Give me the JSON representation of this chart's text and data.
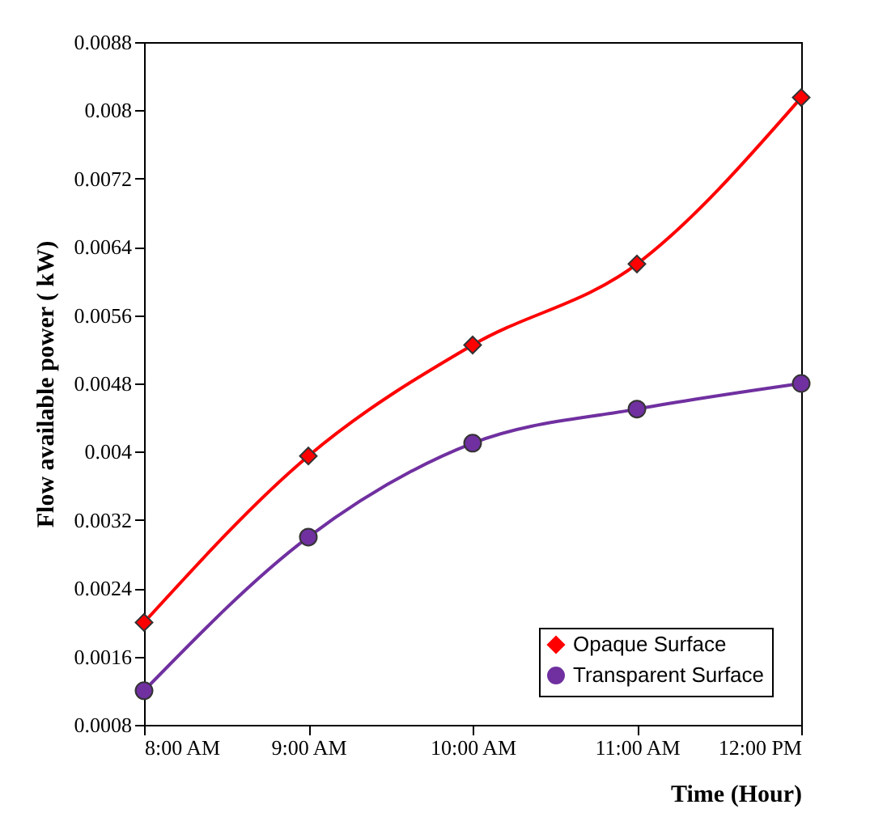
{
  "chart_data": {
    "type": "line",
    "xlabel": "Time  (Hour)",
    "ylabel": "Flow available power  ( kW)",
    "categories": [
      "8:00 AM",
      "9:00 AM",
      "10:00 AM",
      "11:00 AM",
      "12:00 PM"
    ],
    "series": [
      {
        "name": "Opaque Surface",
        "color": "#ff0000",
        "marker": "diamond",
        "values": [
          0.002,
          0.00395,
          0.00525,
          0.0062,
          0.00815
        ]
      },
      {
        "name": "Transparent Surface",
        "color": "#7030a0",
        "marker": "circle",
        "values": [
          0.0012,
          0.003,
          0.0041,
          0.0045,
          0.0048
        ]
      }
    ],
    "ylim": [
      0.0008,
      0.0088
    ],
    "yticks": [
      0.0008,
      0.0016,
      0.0024,
      0.0032,
      0.004,
      0.0048,
      0.0056,
      0.0064,
      0.0072,
      0.008,
      0.0088
    ],
    "grid": false,
    "legend": "bottom right",
    "line_style": "solid"
  }
}
